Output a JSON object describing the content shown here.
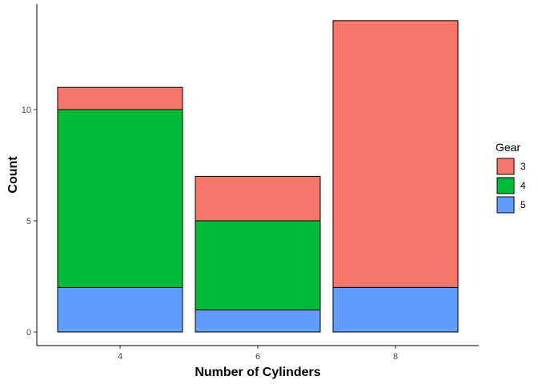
{
  "chart_data": {
    "type": "bar",
    "stacked": true,
    "categories": [
      "4",
      "6",
      "8"
    ],
    "series": [
      {
        "name": "5",
        "values": [
          2,
          1,
          2
        ],
        "color": "#619CFF"
      },
      {
        "name": "4",
        "values": [
          8,
          4,
          0
        ],
        "color": "#00BA38"
      },
      {
        "name": "3",
        "values": [
          1,
          2,
          12
        ],
        "color": "#F8766D"
      }
    ],
    "xlabel": "Number of Cylinders",
    "ylabel": "Count",
    "yticks": [
      "0",
      "5",
      "10"
    ],
    "ylim": [
      0,
      14
    ],
    "grid": false,
    "legend": {
      "title": "Gear",
      "position": "right",
      "entries": [
        {
          "label": "3",
          "color": "#F8766D"
        },
        {
          "label": "4",
          "color": "#00BA38"
        },
        {
          "label": "5",
          "color": "#619CFF"
        }
      ]
    }
  }
}
